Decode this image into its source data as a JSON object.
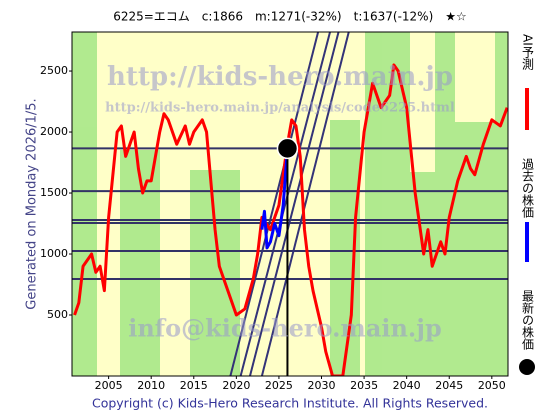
{
  "chart_data": {
    "type": "line",
    "title": "6225=エコム　c:1866　m:1271(-32%)　t:1637(-12%)　★☆",
    "side_note": "Generated on Monday 2026/1/5.",
    "footer": "Copyright (c) Kids-Hero Research Institute. All Rights Reserved.",
    "watermarks": [
      "http://kids-hero.main.jp",
      "http://kids-hero.main.jp/analysis/code6225.html",
      "info@kids-hero.main.jp"
    ],
    "xlim": [
      2000.7,
      2051.9
    ],
    "ylim": [
      0,
      2820
    ],
    "xticks": [
      2005,
      2010,
      2015,
      2020,
      2025,
      2030,
      2035,
      2040,
      2045,
      2050
    ],
    "yticks": [
      500,
      1000,
      1500,
      2000,
      2500
    ],
    "hlines": [
      1866,
      1516,
      1279,
      1254,
      1025,
      795
    ],
    "trend_lines": [
      {
        "x": [
          2019.3,
          2029.6
        ],
        "y": [
          0,
          2820
        ]
      },
      {
        "x": [
          2020.5,
          2031.0
        ],
        "y": [
          0,
          2820
        ]
      },
      {
        "x": [
          2021.6,
          2032.0
        ],
        "y": [
          0,
          2820
        ]
      },
      {
        "x": [
          2023.0,
          2033.2
        ],
        "y": [
          0,
          2820
        ]
      }
    ],
    "series": [
      {
        "name": "AI予測",
        "color": "#ff0000",
        "x": [
          2001,
          2001.5,
          2002,
          2003,
          2003.5,
          2004,
          2004.5,
          2005,
          2006,
          2006.5,
          2007,
          2008,
          2008.5,
          2009,
          2009.5,
          2010,
          2011,
          2011.5,
          2012,
          2013,
          2014,
          2014.5,
          2015,
          2016,
          2016.5,
          2017,
          2017.5,
          2018,
          2019,
          2020,
          2021,
          2022,
          2022.5,
          2023,
          2024,
          2025,
          2026,
          2026.5,
          2027,
          2027.5,
          2028,
          2028.5,
          2029,
          2030,
          2030.5,
          2031.3,
          2032.5,
          2033.5,
          2034,
          2035,
          2036,
          2037,
          2038,
          2038.5,
          2039,
          2040,
          2041,
          2042,
          2042.5,
          2043,
          2044,
          2044.5,
          2045,
          2046,
          2047,
          2047.5,
          2048,
          2049,
          2050,
          2051,
          2051.8
        ],
        "values": [
          500,
          600,
          900,
          1000,
          850,
          900,
          700,
          1300,
          2000,
          2050,
          1800,
          2000,
          1700,
          1500,
          1600,
          1600,
          2000,
          2150,
          2100,
          1900,
          2050,
          1900,
          2000,
          2100,
          2000,
          1600,
          1200,
          900,
          700,
          500,
          550,
          800,
          1000,
          1300,
          1200,
          1400,
          1900,
          2100,
          2050,
          1800,
          1200,
          900,
          700,
          400,
          200,
          0,
          0,
          500,
          1300,
          2000,
          2400,
          2200,
          2300,
          2550,
          2500,
          2200,
          1500,
          1000,
          1200,
          900,
          1100,
          1000,
          1300,
          1600,
          1800,
          1700,
          1650,
          1900,
          2100,
          2050,
          2200
        ]
      },
      {
        "name": "過去の株価",
        "color": "#0000ff",
        "x": [
          2023,
          2023.3,
          2023.6,
          2024,
          2024.5,
          2025,
          2025.5,
          2026
        ],
        "values": [
          1200,
          1350,
          1050,
          1100,
          1250,
          1150,
          1400,
          1866
        ]
      }
    ],
    "latest": {
      "name": "最新の株価",
      "color": "#000000",
      "x": 2026,
      "value": 1866
    }
  }
}
